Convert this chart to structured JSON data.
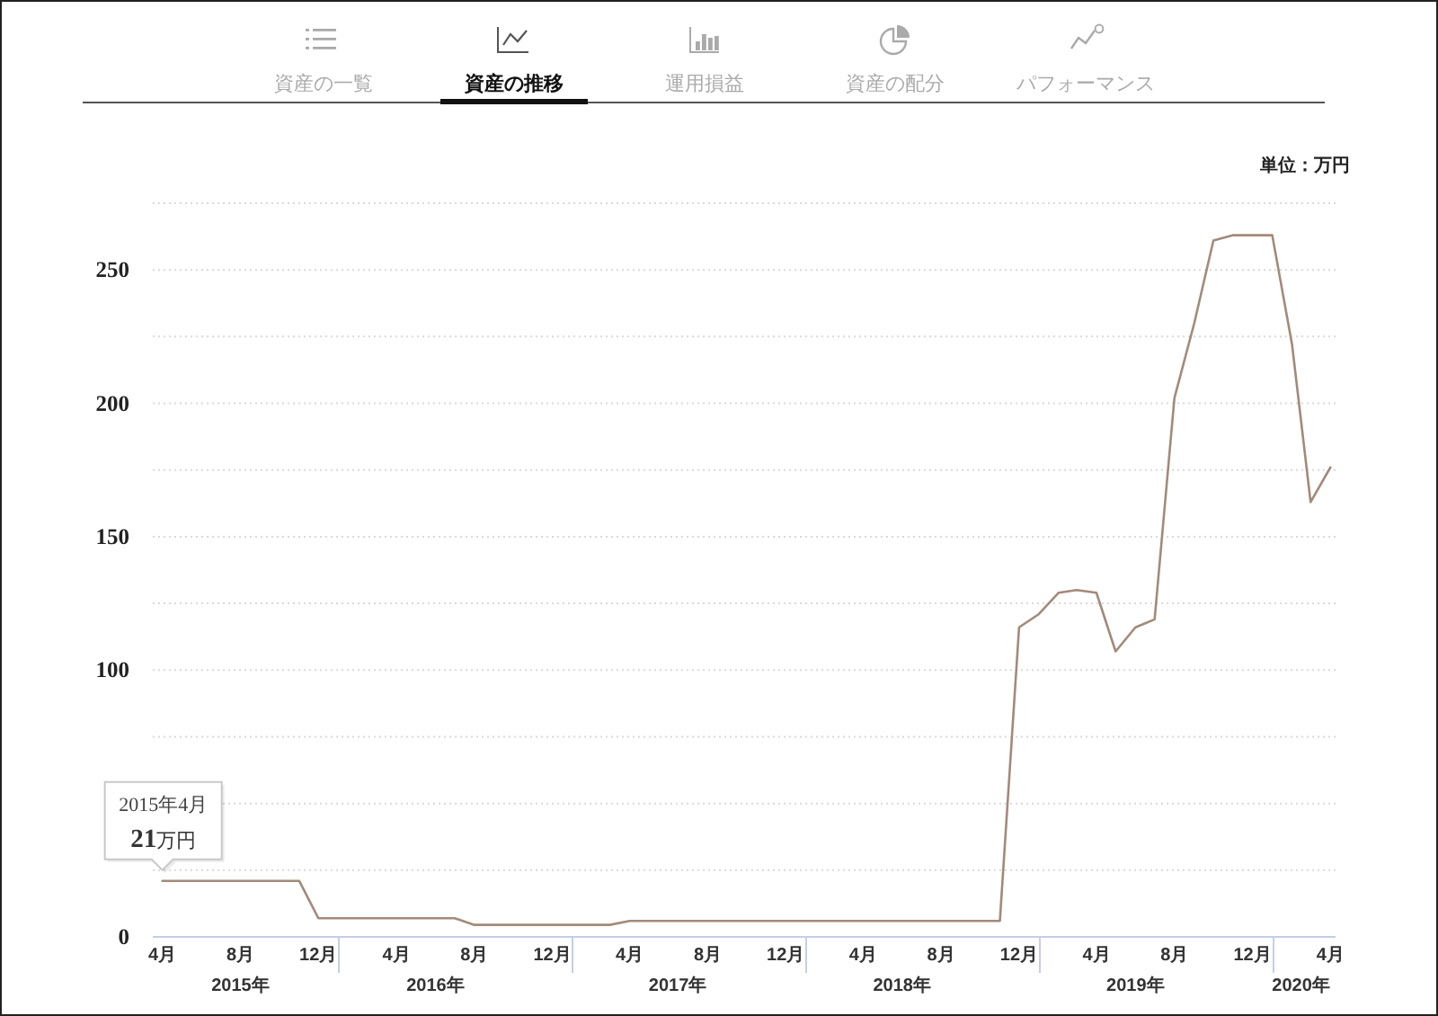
{
  "chart_data": {
    "type": "line",
    "title": "資産の推移",
    "ylabel": "単位：万円",
    "annotations": [
      "資産の一覧",
      "運用損益",
      "資産の配分",
      "パフォーマンス",
      "2015年4月",
      {
        "text": "21万円",
        "x": "2015-04",
        "y": 21
      }
    ],
    "x": [
      "2015-04",
      "2015-05",
      "2015-06",
      "2015-07",
      "2015-08",
      "2015-09",
      "2015-10",
      "2015-11",
      "2015-12",
      "2016-01",
      "2016-02",
      "2016-03",
      "2016-04",
      "2016-05",
      "2016-06",
      "2016-07",
      "2016-08",
      "2016-09",
      "2016-10",
      "2016-11",
      "2016-12",
      "2017-01",
      "2017-02",
      "2017-03",
      "2017-04",
      "2017-05",
      "2017-06",
      "2017-07",
      "2017-08",
      "2017-09",
      "2017-10",
      "2017-11",
      "2017-12",
      "2018-01",
      "2018-02",
      "2018-03",
      "2018-04",
      "2018-05",
      "2018-06",
      "2018-07",
      "2018-08",
      "2018-09",
      "2018-10",
      "2018-11",
      "2018-12",
      "2019-01",
      "2019-02",
      "2019-03",
      "2019-04",
      "2019-05",
      "2019-06",
      "2019-07",
      "2019-08",
      "2019-09",
      "2019-10",
      "2019-11",
      "2019-12",
      "2020-01",
      "2020-02",
      "2020-03",
      "2020-04"
    ],
    "series": [
      {
        "color": "#a38a7a",
        "values": [
          21,
          21,
          21,
          21,
          21,
          21,
          21,
          21,
          7,
          7,
          7,
          7,
          7,
          7,
          7,
          7,
          4.5,
          4.5,
          4.5,
          4.5,
          4.5,
          4.5,
          4.5,
          4.5,
          6,
          6,
          6,
          6,
          6,
          6,
          6,
          6,
          6,
          6,
          6,
          6,
          6,
          6,
          6,
          6,
          6,
          6,
          6,
          6,
          116,
          121,
          129,
          130,
          129,
          107,
          116,
          119,
          202,
          230,
          261,
          263,
          263,
          263,
          222,
          163,
          176
        ]
      }
    ],
    "xlim": [
      "2015-03-17",
      "2020-04-09"
    ],
    "xticks": [
      {
        "value": "2015-04",
        "label": "4月"
      },
      {
        "value": "2015-08",
        "label": "8月"
      },
      {
        "value": "2015-12",
        "label": "12月"
      },
      {
        "value": "2016-04",
        "label": "4月"
      },
      {
        "value": "2016-08",
        "label": "8月"
      },
      {
        "value": "2016-12",
        "label": "12月"
      },
      {
        "value": "2017-04",
        "label": "4月"
      },
      {
        "value": "2017-08",
        "label": "8月"
      },
      {
        "value": "2017-12",
        "label": "12月"
      },
      {
        "value": "2018-04",
        "label": "4月"
      },
      {
        "value": "2018-08",
        "label": "8月"
      },
      {
        "value": "2018-12",
        "label": "12月"
      },
      {
        "value": "2019-04",
        "label": "4月"
      },
      {
        "value": "2019-08",
        "label": "8月"
      },
      {
        "value": "2019-12",
        "label": "12月"
      },
      {
        "value": "2020-04",
        "label": "4月"
      }
    ],
    "x2lim": [
      "2015-03-17",
      "2020-04-09"
    ],
    "x2ticks": [
      {
        "value": "2015-08",
        "label": "2015年"
      },
      {
        "value": "2016-06",
        "label": "2016年"
      },
      {
        "value": "2017-06-15",
        "label": "2017年"
      },
      {
        "value": "2018-06",
        "label": "2018年"
      },
      {
        "value": "2019-06",
        "label": "2019年"
      },
      {
        "value": "2020-02-15",
        "label": "2020年"
      }
    ],
    "ylim": [
      0,
      275
    ],
    "yticks": [
      0,
      {
        "value": 25,
        "label": null
      },
      {
        "value": 50,
        "label": null
      },
      {
        "value": 75,
        "label": null
      },
      100,
      {
        "value": 125,
        "label": null
      },
      150,
      {
        "value": 175,
        "label": null
      },
      200,
      {
        "value": 225,
        "label": null
      },
      250,
      {
        "value": 275,
        "label": null
      }
    ],
    "grid": "y"
  }
}
